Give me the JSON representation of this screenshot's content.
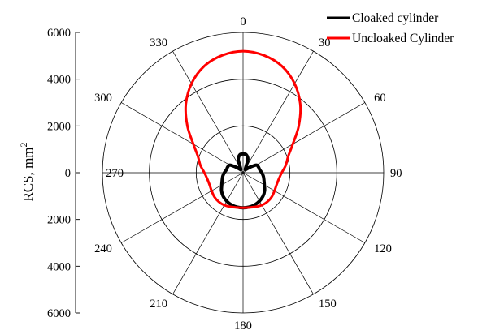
{
  "chart_data": {
    "type": "polar-line",
    "ylabel": "RCS, mm",
    "ylabel_exponent": "2",
    "radial_axis": {
      "range": [
        0,
        6000
      ],
      "rings": [
        2000,
        4000,
        6000
      ],
      "tick_labels_upper": [
        "6000",
        "4000",
        "2000",
        "0"
      ],
      "tick_labels_lower": [
        "2000",
        "4000",
        "6000"
      ]
    },
    "angle_axis": {
      "zero_direction": "top",
      "direction": "clockwise",
      "angles": [
        0,
        30,
        60,
        90,
        120,
        150,
        180,
        210,
        240,
        270,
        300,
        330
      ],
      "tick_labels": [
        "0",
        "30",
        "60",
        "90",
        "120",
        "150",
        "180",
        "210",
        "240",
        "270",
        "300",
        "330"
      ]
    },
    "legend": {
      "placement": "top-right",
      "entries": [
        "Cloaked cylinder",
        "Uncloaked Cylinder"
      ]
    },
    "series": [
      {
        "name": "Cloaked cylinder",
        "color": "#000000",
        "angles_deg": [
          0,
          10,
          20,
          30,
          40,
          50,
          60,
          70,
          80,
          90,
          100,
          110,
          120,
          130,
          140,
          150,
          160,
          170,
          180,
          190,
          200,
          210,
          220,
          230,
          240,
          250,
          260,
          270,
          280,
          290,
          300,
          310,
          320,
          330,
          340,
          350,
          360
        ],
        "values": [
          800,
          780,
          600,
          200,
          200,
          350,
          650,
          700,
          720,
          800,
          880,
          950,
          1050,
          1200,
          1320,
          1400,
          1460,
          1490,
          1500,
          1490,
          1460,
          1400,
          1320,
          1200,
          1050,
          950,
          880,
          800,
          720,
          700,
          650,
          350,
          200,
          200,
          600,
          780,
          800
        ]
      },
      {
        "name": "Uncloaked Cylinder",
        "color": "#ff0000",
        "angles_deg": [
          0,
          10,
          20,
          30,
          40,
          50,
          60,
          70,
          80,
          90,
          100,
          110,
          120,
          130,
          140,
          150,
          160,
          170,
          180,
          190,
          200,
          210,
          220,
          230,
          240,
          250,
          260,
          270,
          280,
          290,
          300,
          310,
          320,
          330,
          340,
          350,
          360
        ],
        "values": [
          5200,
          5100,
          4850,
          4400,
          3800,
          3100,
          2450,
          2050,
          1850,
          1650,
          1550,
          1520,
          1550,
          1600,
          1620,
          1600,
          1550,
          1510,
          1500,
          1510,
          1550,
          1600,
          1620,
          1600,
          1550,
          1520,
          1550,
          1650,
          1850,
          2050,
          2450,
          3100,
          3800,
          4400,
          4850,
          5100,
          5200
        ]
      }
    ]
  }
}
